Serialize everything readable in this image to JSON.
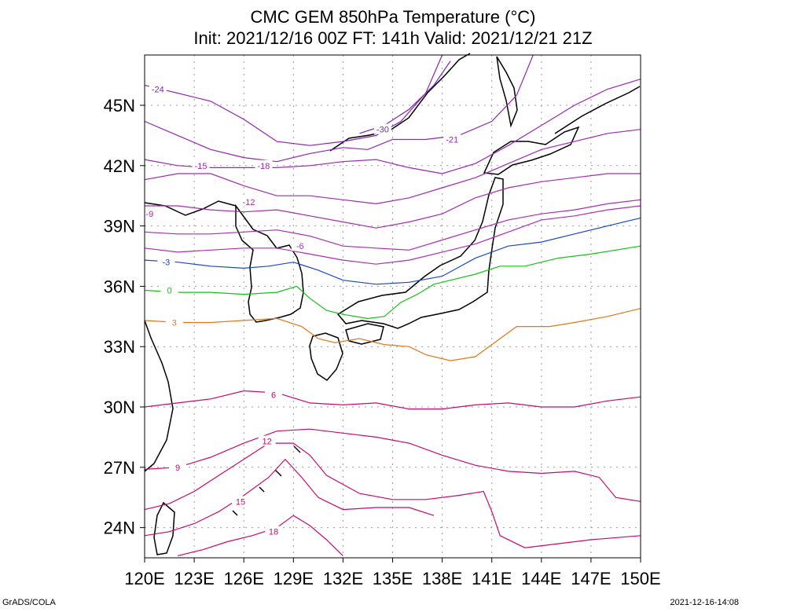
{
  "chart_data": {
    "type": "contour-map",
    "title": "CMC GEM 850hPa Temperature (°C)",
    "subtitle": "Init: 2021/12/16 00Z  FT: 141h  Valid: 2021/12/21 21Z",
    "footer_left": "GrADS/COLA",
    "footer_right": "2021-12-16-14:08",
    "xlim": [
      120,
      150
    ],
    "ylim": [
      22.5,
      47.5
    ],
    "grid": true,
    "xticks": [
      {
        "v": 120,
        "label": "120E"
      },
      {
        "v": 123,
        "label": "123E"
      },
      {
        "v": 126,
        "label": "126E"
      },
      {
        "v": 129,
        "label": "129E"
      },
      {
        "v": 132,
        "label": "132E"
      },
      {
        "v": 135,
        "label": "135E"
      },
      {
        "v": 138,
        "label": "138E"
      },
      {
        "v": 141,
        "label": "141E"
      },
      {
        "v": 144,
        "label": "144E"
      },
      {
        "v": 147,
        "label": "147E"
      },
      {
        "v": 150,
        "label": "150E"
      }
    ],
    "yticks": [
      {
        "v": 24,
        "label": "24N"
      },
      {
        "v": 27,
        "label": "27N"
      },
      {
        "v": 30,
        "label": "30N"
      },
      {
        "v": 33,
        "label": "33N"
      },
      {
        "v": 36,
        "label": "36N"
      },
      {
        "v": 39,
        "label": "39N"
      },
      {
        "v": 42,
        "label": "42N"
      },
      {
        "v": 45,
        "label": "45N"
      }
    ],
    "contours": [
      {
        "level": -30,
        "color": "#8020b0",
        "label": "-30",
        "lx": 134.4,
        "ly": 43.8,
        "pts": [
          [
            133.0,
            43.6
          ],
          [
            134.5,
            44.0
          ],
          [
            136.0,
            44.8
          ],
          [
            137.5,
            46.0
          ],
          [
            138.5,
            47.2
          ]
        ]
      },
      {
        "level": -24,
        "color": "#8a22b0",
        "label": "-24",
        "lx": 120.8,
        "ly": 45.8,
        "pts": [
          [
            120,
            46.0
          ],
          [
            122,
            45.6
          ],
          [
            124,
            45.2
          ],
          [
            126,
            44.3
          ],
          [
            128,
            43.2
          ],
          [
            130,
            43.0
          ],
          [
            132,
            43.2
          ],
          [
            134,
            43.5
          ],
          [
            135.5,
            44.2
          ],
          [
            137,
            45.6
          ],
          [
            138,
            47.5
          ]
        ]
      },
      {
        "level": -21,
        "color": "#9026b0",
        "label": "-21",
        "lx": 138.6,
        "ly": 43.3,
        "pts": [
          [
            120,
            44.2
          ],
          [
            122,
            43.5
          ],
          [
            124,
            42.8
          ],
          [
            126,
            42.4
          ],
          [
            128,
            42.2
          ],
          [
            130,
            42.6
          ],
          [
            132,
            42.9
          ],
          [
            133.5,
            42.8
          ],
          [
            135,
            43.3
          ],
          [
            137,
            43.3
          ],
          [
            139,
            43.5
          ],
          [
            141,
            44.2
          ],
          [
            142.5,
            45.5
          ],
          [
            143.5,
            47.5
          ]
        ]
      },
      {
        "level": -18,
        "color": "#9a28b0",
        "label": "-18",
        "lx": 127.2,
        "ly": 42.0,
        "pts": [
          [
            120,
            42.3
          ],
          [
            122,
            42.0
          ],
          [
            124,
            41.9
          ],
          [
            126,
            41.9
          ],
          [
            128,
            41.9
          ],
          [
            130,
            42.0
          ],
          [
            132,
            42.2
          ],
          [
            134,
            42.3
          ],
          [
            136,
            41.9
          ],
          [
            138,
            41.6
          ],
          [
            140,
            42.1
          ],
          [
            142,
            43.0
          ],
          [
            144,
            44.0
          ],
          [
            146,
            45.0
          ],
          [
            148,
            45.8
          ],
          [
            150,
            46.3
          ]
        ]
      },
      {
        "level": -15,
        "color": "#a02ab0",
        "label": "-15",
        "lx": 123.4,
        "ly": 42.0,
        "pts": [
          [
            120,
            41.3
          ],
          [
            122,
            41.6
          ],
          [
            124,
            41.6
          ],
          [
            126,
            41.0
          ],
          [
            128,
            40.5
          ],
          [
            130,
            40.5
          ],
          [
            132,
            40.3
          ],
          [
            134,
            40.1
          ],
          [
            136,
            40.4
          ],
          [
            138,
            40.9
          ],
          [
            140,
            41.4
          ],
          [
            142,
            42.1
          ],
          [
            144,
            42.8
          ],
          [
            146,
            43.2
          ],
          [
            148,
            43.6
          ],
          [
            150,
            43.8
          ]
        ]
      },
      {
        "level": -12,
        "color": "#a42cb0",
        "label": "-12",
        "lx": 126.3,
        "ly": 40.2,
        "pts": [
          [
            120,
            40.0
          ],
          [
            122,
            40.0
          ],
          [
            124,
            39.8
          ],
          [
            126,
            39.7
          ],
          [
            128,
            39.8
          ],
          [
            130,
            39.5
          ],
          [
            132,
            39.2
          ],
          [
            134,
            38.9
          ],
          [
            136,
            39.2
          ],
          [
            138,
            39.6
          ],
          [
            140,
            40.4
          ],
          [
            142,
            40.9
          ],
          [
            144,
            41.2
          ],
          [
            146,
            41.4
          ],
          [
            148,
            41.6
          ],
          [
            150,
            41.6
          ]
        ]
      },
      {
        "level": -9,
        "color": "#a82eb0",
        "label": "-9",
        "lx": 120.3,
        "ly": 39.6,
        "pts": [
          [
            120,
            38.7
          ],
          [
            122,
            38.6
          ],
          [
            124,
            38.6
          ],
          [
            126,
            38.7
          ],
          [
            128,
            38.8
          ],
          [
            130,
            38.5
          ],
          [
            132,
            38.0
          ],
          [
            134,
            37.9
          ],
          [
            136,
            37.8
          ],
          [
            138,
            38.3
          ],
          [
            140,
            38.8
          ],
          [
            142,
            39.3
          ],
          [
            144,
            39.6
          ],
          [
            146,
            39.8
          ],
          [
            148,
            40.1
          ],
          [
            150,
            40.3
          ]
        ]
      },
      {
        "level": -6,
        "color": "#ac30b0",
        "label": "-6",
        "lx": 129.4,
        "ly": 38.0,
        "pts": [
          [
            120,
            37.9
          ],
          [
            122,
            37.7
          ],
          [
            124,
            37.8
          ],
          [
            126,
            37.9
          ],
          [
            128,
            37.9
          ],
          [
            130,
            37.6
          ],
          [
            132,
            37.3
          ],
          [
            134,
            37.1
          ],
          [
            136,
            37.3
          ],
          [
            138,
            37.7
          ],
          [
            140,
            38.1
          ],
          [
            142,
            38.7
          ],
          [
            144,
            39.3
          ],
          [
            146,
            39.5
          ],
          [
            148,
            39.8
          ],
          [
            150,
            40.0
          ]
        ]
      },
      {
        "level": -3,
        "color": "#1a48c8",
        "label": "-3",
        "lx": 121.3,
        "ly": 37.2,
        "pts": [
          [
            120,
            37.3
          ],
          [
            122,
            37.2
          ],
          [
            124,
            37.0
          ],
          [
            126,
            36.9
          ],
          [
            127.5,
            37.0
          ],
          [
            129,
            37.2
          ],
          [
            130.5,
            36.8
          ],
          [
            132,
            36.3
          ],
          [
            134,
            36.1
          ],
          [
            136,
            36.2
          ],
          [
            138,
            36.5
          ],
          [
            140,
            37.4
          ],
          [
            142,
            38.0
          ],
          [
            144,
            38.2
          ],
          [
            146,
            38.6
          ],
          [
            148,
            39.0
          ],
          [
            150,
            39.4
          ]
        ]
      },
      {
        "level": 0,
        "color": "#18c018",
        "label": "0",
        "lx": 121.5,
        "ly": 35.8,
        "pts": [
          [
            120,
            35.8
          ],
          [
            122,
            35.7
          ],
          [
            124,
            35.7
          ],
          [
            126,
            35.6
          ],
          [
            128,
            35.7
          ],
          [
            129.2,
            36.0
          ],
          [
            130,
            35.4
          ],
          [
            131,
            34.8
          ],
          [
            132,
            34.6
          ],
          [
            133.5,
            34.4
          ],
          [
            134.5,
            34.5
          ],
          [
            135.5,
            35.2
          ],
          [
            136.5,
            35.6
          ],
          [
            137.5,
            36.1
          ],
          [
            138.5,
            36.3
          ],
          [
            140,
            36.6
          ],
          [
            141.5,
            37.0
          ],
          [
            143,
            37.0
          ],
          [
            145,
            37.4
          ],
          [
            147,
            37.6
          ],
          [
            150,
            38.0
          ]
        ]
      },
      {
        "level": 3,
        "color": "#e07818",
        "label": "3",
        "lx": 121.8,
        "ly": 34.2,
        "pts": [
          [
            120,
            34.3
          ],
          [
            122,
            34.2
          ],
          [
            124,
            34.2
          ],
          [
            126,
            34.3
          ],
          [
            128,
            34.4
          ],
          [
            129.5,
            34.0
          ],
          [
            130.5,
            33.4
          ],
          [
            131.5,
            33.2
          ],
          [
            133,
            33.4
          ],
          [
            134.5,
            33.1
          ],
          [
            136,
            33.0
          ],
          [
            137,
            32.6
          ],
          [
            138.5,
            32.3
          ],
          [
            140,
            32.5
          ],
          [
            141.5,
            33.4
          ],
          [
            142.5,
            34.0
          ],
          [
            144.5,
            34.0
          ],
          [
            146,
            34.2
          ],
          [
            148,
            34.5
          ],
          [
            150,
            34.9
          ]
        ]
      },
      {
        "level": 6,
        "color": "#c80a70",
        "label": "6",
        "lx": 127.8,
        "ly": 30.6,
        "pts": [
          [
            120,
            30.0
          ],
          [
            122,
            30.2
          ],
          [
            124,
            30.4
          ],
          [
            126,
            30.8
          ],
          [
            128,
            30.7
          ],
          [
            130,
            30.2
          ],
          [
            132,
            30.1
          ],
          [
            134,
            30.2
          ],
          [
            136,
            29.9
          ],
          [
            138,
            29.9
          ],
          [
            140,
            30.1
          ],
          [
            142,
            30.2
          ],
          [
            144,
            30.0
          ],
          [
            146,
            30.0
          ],
          [
            148,
            30.3
          ],
          [
            150,
            30.5
          ]
        ]
      },
      {
        "level": 9,
        "color": "#c80a70",
        "label": "9",
        "lx": 122.0,
        "ly": 27.0,
        "pts": [
          [
            120,
            26.9
          ],
          [
            122,
            27.0
          ],
          [
            124,
            27.5
          ],
          [
            126,
            28.2
          ],
          [
            128,
            28.8
          ],
          [
            130,
            28.9
          ],
          [
            132,
            28.7
          ],
          [
            134,
            28.5
          ],
          [
            136,
            28.2
          ],
          [
            138,
            27.6
          ],
          [
            140,
            27.1
          ],
          [
            142,
            26.8
          ],
          [
            144,
            26.7
          ],
          [
            146,
            26.8
          ],
          [
            147.5,
            26.5
          ],
          [
            148.5,
            25.5
          ],
          [
            150,
            25.3
          ]
        ]
      },
      {
        "level": 12,
        "color": "#c80a70",
        "label": "12",
        "lx": 127.4,
        "ly": 28.3,
        "pts": [
          [
            120,
            24.9
          ],
          [
            121.5,
            25.2
          ],
          [
            123,
            25.8
          ],
          [
            124.5,
            26.6
          ],
          [
            126,
            27.4
          ],
          [
            127.5,
            28.2
          ],
          [
            129,
            28.2
          ],
          [
            130,
            27.6
          ],
          [
            131,
            26.6
          ],
          [
            133,
            25.7
          ],
          [
            135,
            25.4
          ],
          [
            137,
            25.4
          ],
          [
            139,
            25.6
          ],
          [
            140.5,
            25.8
          ],
          [
            141,
            24.8
          ],
          [
            141.5,
            23.6
          ],
          [
            143,
            23.0
          ],
          [
            145,
            23.2
          ],
          [
            147,
            23.4
          ],
          [
            150,
            23.6
          ]
        ]
      },
      {
        "level": 15,
        "color": "#c80a70",
        "label": "15",
        "lx": 125.8,
        "ly": 25.3,
        "pts": [
          [
            120,
            23.6
          ],
          [
            121.5,
            23.8
          ],
          [
            123,
            24.2
          ],
          [
            124.5,
            24.8
          ],
          [
            126,
            25.6
          ],
          [
            127.5,
            26.5
          ],
          [
            128.5,
            27.4
          ],
          [
            129.5,
            26.5
          ],
          [
            130.5,
            25.5
          ],
          [
            132,
            24.9
          ],
          [
            134,
            25.0
          ],
          [
            136,
            25.0
          ],
          [
            137.5,
            24.6
          ]
        ]
      },
      {
        "level": 18,
        "color": "#c80a70",
        "label": "18",
        "lx": 127.8,
        "ly": 23.8,
        "pts": [
          [
            122,
            22.6
          ],
          [
            123.5,
            22.9
          ],
          [
            125,
            23.3
          ],
          [
            126.5,
            23.6
          ],
          [
            128,
            24.0
          ],
          [
            129,
            24.6
          ],
          [
            130,
            24.1
          ],
          [
            131,
            23.4
          ],
          [
            132,
            22.6
          ]
        ]
      }
    ]
  }
}
